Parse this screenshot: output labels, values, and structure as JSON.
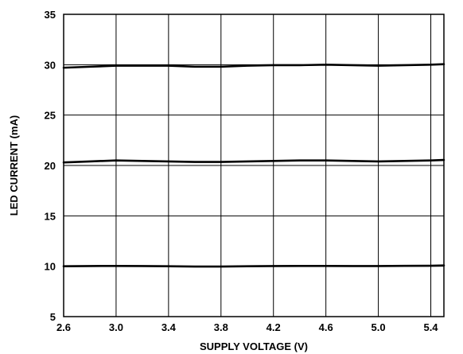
{
  "chart_data": {
    "type": "line",
    "title": "",
    "xlabel": "SUPPLY VOLTAGE (V)",
    "ylabel": "LED CURRENT (mA)",
    "xlim": [
      2.6,
      5.5
    ],
    "ylim": [
      5,
      35
    ],
    "xticks": [
      2.6,
      3.0,
      3.4,
      3.8,
      4.2,
      4.6,
      5.0,
      5.4
    ],
    "xtick_labels": [
      "2.6",
      "3.0",
      "3.4",
      "3.8",
      "4.2",
      "4.6",
      "5.0",
      "5.4"
    ],
    "yticks": [
      5,
      10,
      15,
      20,
      25,
      30,
      35
    ],
    "ytick_labels": [
      "5",
      "10",
      "15",
      "20",
      "25",
      "30",
      "35"
    ],
    "x_minor_gridline": 5.4,
    "grid": true,
    "legend": "none",
    "line_color": "#000000",
    "series": [
      {
        "x": [
          2.6,
          2.8,
          3.0,
          3.2,
          3.4,
          3.6,
          3.8,
          4.0,
          4.2,
          4.4,
          4.6,
          4.8,
          5.0,
          5.2,
          5.4,
          5.5
        ],
        "values": [
          29.7,
          29.8,
          29.9,
          29.9,
          29.9,
          29.8,
          29.8,
          29.9,
          29.95,
          29.95,
          30.0,
          29.95,
          29.9,
          29.95,
          30.0,
          30.05
        ]
      },
      {
        "x": [
          2.6,
          2.8,
          3.0,
          3.2,
          3.4,
          3.6,
          3.8,
          4.0,
          4.2,
          4.4,
          4.6,
          4.8,
          5.0,
          5.2,
          5.4,
          5.5
        ],
        "values": [
          20.3,
          20.4,
          20.5,
          20.45,
          20.4,
          20.35,
          20.35,
          20.4,
          20.45,
          20.5,
          20.5,
          20.45,
          20.4,
          20.45,
          20.5,
          20.55
        ]
      },
      {
        "x": [
          2.6,
          2.8,
          3.0,
          3.2,
          3.4,
          3.6,
          3.8,
          4.0,
          4.2,
          4.4,
          4.6,
          4.8,
          5.0,
          5.2,
          5.4,
          5.5
        ],
        "values": [
          10.0,
          10.02,
          10.03,
          10.02,
          10.0,
          9.97,
          9.97,
          10.0,
          10.02,
          10.03,
          10.03,
          10.02,
          10.02,
          10.04,
          10.05,
          10.08
        ]
      }
    ]
  }
}
